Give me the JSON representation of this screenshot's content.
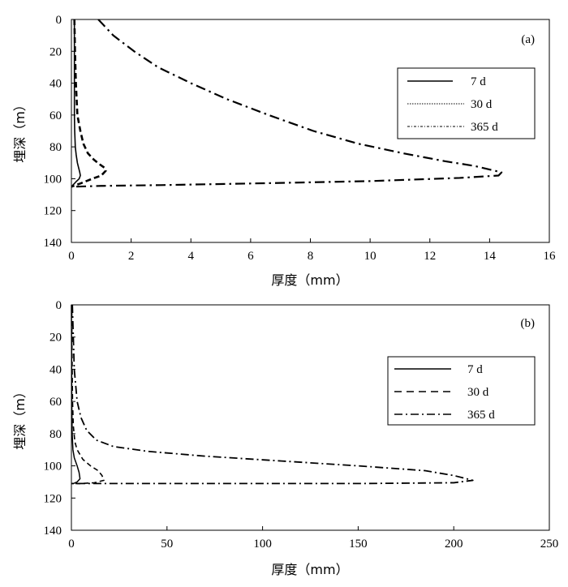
{
  "chart_data": [
    {
      "type": "line",
      "panel_label": "(a)",
      "xlabel": "厚度（mm）",
      "ylabel": "埋深（m）",
      "xlim": [
        0,
        16
      ],
      "ylim": [
        0,
        140
      ],
      "y_inverted": true,
      "xticks": [
        0,
        2,
        4,
        6,
        8,
        10,
        12,
        14,
        16
      ],
      "yticks": [
        0,
        20,
        40,
        60,
        80,
        100,
        120,
        140
      ],
      "grid": false,
      "legend_position": "top-right",
      "series": [
        {
          "name": "7 d",
          "style": "solid",
          "x": [
            0.1,
            0.1,
            0.1,
            0.1,
            0.11,
            0.13,
            0.16,
            0.2,
            0.24,
            0.28,
            0.3,
            0.26,
            0.15,
            0.05,
            0.0
          ],
          "y": [
            0,
            20,
            40,
            60,
            70,
            80,
            85,
            90,
            93,
            96,
            98,
            100,
            102,
            104,
            105
          ]
        },
        {
          "name": "30 d",
          "style": "dashed",
          "x": [
            0.1,
            0.12,
            0.15,
            0.2,
            0.3,
            0.4,
            0.55,
            0.75,
            0.95,
            1.1,
            1.15,
            1.0,
            0.7,
            0.3,
            0.0
          ],
          "y": [
            0,
            20,
            40,
            60,
            70,
            78,
            84,
            88,
            91,
            93,
            95,
            98,
            100,
            103,
            105
          ]
        },
        {
          "name": "365 d",
          "style": "dash-dot",
          "x": [
            0.9,
            1.4,
            2.1,
            2.9,
            4.0,
            5.2,
            6.6,
            8.1,
            9.6,
            11.1,
            12.5,
            13.5,
            14.4,
            14.3,
            13.0,
            10.0,
            6.0,
            3.0,
            1.0,
            0.1
          ],
          "y": [
            0,
            10,
            20,
            30,
            40,
            50,
            60,
            70,
            78,
            84,
            89,
            92,
            96,
            98,
            99.5,
            101.5,
            103,
            104,
            104.5,
            105
          ]
        }
      ]
    },
    {
      "type": "line",
      "panel_label": "(b)",
      "xlabel": "厚度（mm）",
      "ylabel": "埋深（m）",
      "xlim": [
        0,
        250
      ],
      "ylim": [
        0,
        140
      ],
      "y_inverted": true,
      "xticks": [
        0,
        50,
        100,
        150,
        200,
        250
      ],
      "yticks": [
        0,
        20,
        40,
        60,
        80,
        100,
        120,
        140
      ],
      "grid": false,
      "legend_position": "right",
      "series": [
        {
          "name": "7 d",
          "style": "solid",
          "x": [
            0.0,
            0.1,
            0.2,
            0.4,
            0.8,
            1.5,
            3.0,
            4.0,
            4.5,
            3.0,
            1.0,
            0.0
          ],
          "y": [
            0,
            30,
            60,
            80,
            90,
            95,
            100,
            104,
            108,
            110,
            111,
            111
          ]
        },
        {
          "name": "30 d",
          "style": "dashed",
          "x": [
            0.2,
            0.3,
            0.6,
            1.0,
            1.8,
            3.0,
            6.0,
            10.0,
            14.0,
            16.0,
            17.0,
            12.0,
            5.0,
            0.0
          ],
          "y": [
            0,
            30,
            60,
            75,
            85,
            90,
            96,
            100,
            103,
            106,
            109,
            110.5,
            111,
            111
          ]
        },
        {
          "name": "365 d",
          "style": "dash-dot",
          "x": [
            0.5,
            1.5,
            3.0,
            5.0,
            8.0,
            13.0,
            22.0,
            40.0,
            70.0,
            110.0,
            150.0,
            185.0,
            200.0,
            210.0,
            200.0,
            150.0,
            100.0,
            50.0,
            10.0,
            0.0
          ],
          "y": [
            0,
            40,
            60,
            70,
            78,
            84,
            88,
            91,
            94,
            97,
            100,
            103,
            106,
            109,
            110.5,
            111,
            111,
            111,
            111,
            111
          ]
        }
      ]
    }
  ]
}
